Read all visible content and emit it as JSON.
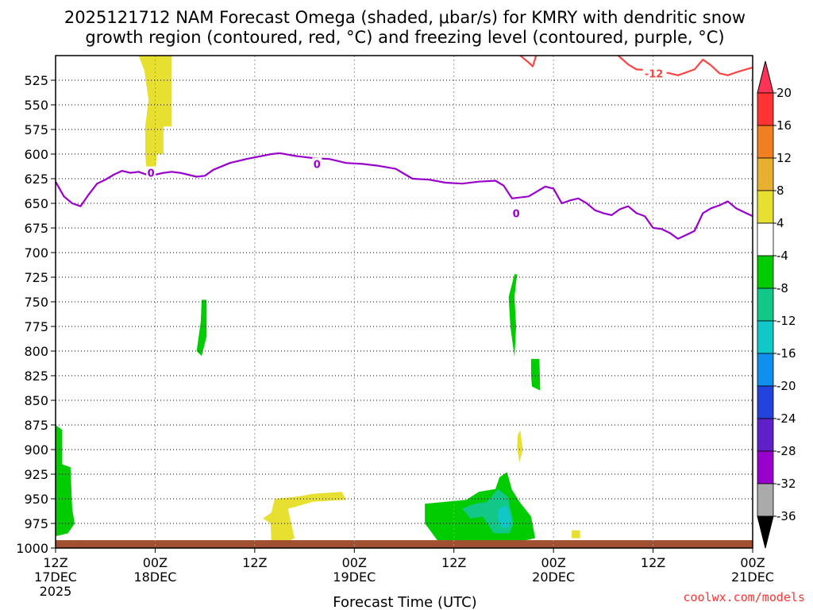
{
  "chart_data": {
    "type": "heatmap",
    "title_line1": "2025121712 NAM Forecast Omega (shaded, μbar/s) for KMRY with dendritic snow",
    "title_line2": "growth region (contoured, red, °C) and freezing level (contoured, purple, °C)",
    "xlabel": "Forecast Time (UTC)",
    "credit": "coolwx.com/models",
    "x_range_hours": [
      0,
      84
    ],
    "y_range_mb": [
      500,
      1000
    ],
    "x_ticks": [
      {
        "hour": 0,
        "line1": "12Z",
        "line2": "17DEC",
        "line3": "2025"
      },
      {
        "hour": 12,
        "line1": "00Z",
        "line2": "18DEC",
        "line3": ""
      },
      {
        "hour": 24,
        "line1": "12Z",
        "line2": "",
        "line3": ""
      },
      {
        "hour": 36,
        "line1": "00Z",
        "line2": "19DEC",
        "line3": ""
      },
      {
        "hour": 48,
        "line1": "12Z",
        "line2": "",
        "line3": ""
      },
      {
        "hour": 60,
        "line1": "00Z",
        "line2": "20DEC",
        "line3": ""
      },
      {
        "hour": 72,
        "line1": "12Z",
        "line2": "",
        "line3": ""
      },
      {
        "hour": 84,
        "line1": "00Z",
        "line2": "21DEC",
        "line3": ""
      }
    ],
    "y_ticks": [
      525,
      550,
      575,
      600,
      625,
      650,
      675,
      700,
      725,
      750,
      775,
      800,
      825,
      850,
      875,
      900,
      925,
      950,
      975,
      1000
    ],
    "colorbar": {
      "ticks": [
        20,
        16,
        12,
        8,
        4,
        -4,
        -8,
        -12,
        -16,
        -20,
        -24,
        -28,
        -32,
        -36
      ],
      "colors": [
        "#ff3355",
        "#ff3333",
        "#f07f1f",
        "#e8b030",
        "#e8e030",
        "#ffffff",
        "#00cc00",
        "#11c888",
        "#10c8c8",
        "#1090ee",
        "#2244dd",
        "#6020c8",
        "#9900cc",
        "#aaaaaa"
      ]
    },
    "contours": [
      {
        "name": "freezing-level",
        "label": "0",
        "color": "#9900cc",
        "points": [
          [
            0,
            628
          ],
          [
            1,
            643
          ],
          [
            2,
            650
          ],
          [
            3,
            653
          ],
          [
            4,
            641
          ],
          [
            5,
            630
          ],
          [
            6,
            626
          ],
          [
            7,
            621
          ],
          [
            8,
            617
          ],
          [
            9,
            619
          ],
          [
            10,
            618
          ],
          [
            11,
            621
          ],
          [
            12,
            621
          ],
          [
            13,
            619
          ],
          [
            14,
            618
          ],
          [
            15,
            619
          ],
          [
            16,
            621
          ],
          [
            17,
            623
          ],
          [
            18,
            622
          ],
          [
            19,
            616
          ],
          [
            21,
            609
          ],
          [
            23,
            605
          ],
          [
            26,
            600
          ],
          [
            27,
            599
          ],
          [
            29,
            602
          ],
          [
            31,
            604
          ],
          [
            33,
            605
          ],
          [
            35,
            609
          ],
          [
            37,
            610
          ],
          [
            39,
            612
          ],
          [
            41,
            615
          ],
          [
            43,
            625
          ],
          [
            45,
            626
          ],
          [
            47,
            629
          ],
          [
            49,
            630
          ],
          [
            51,
            628
          ],
          [
            53,
            627
          ],
          [
            54,
            632
          ],
          [
            55,
            645
          ],
          [
            57,
            643
          ],
          [
            59,
            633
          ],
          [
            60,
            635
          ],
          [
            61,
            650
          ],
          [
            62,
            647
          ],
          [
            63,
            645
          ],
          [
            64,
            650
          ],
          [
            65,
            657
          ],
          [
            66,
            660
          ],
          [
            67,
            662
          ],
          [
            68,
            656
          ],
          [
            69,
            653
          ],
          [
            70,
            660
          ],
          [
            71,
            663
          ],
          [
            72,
            675
          ],
          [
            73,
            676
          ],
          [
            74,
            680
          ],
          [
            75,
            686
          ],
          [
            76,
            682
          ],
          [
            77,
            678
          ],
          [
            78,
            660
          ],
          [
            79,
            655
          ],
          [
            80,
            652
          ],
          [
            81,
            648
          ],
          [
            82,
            655
          ],
          [
            83,
            659
          ],
          [
            84,
            663
          ]
        ]
      },
      {
        "name": "dendritic-minus12",
        "label": "-12",
        "color": "#ff4444",
        "points": [
          [
            67.8,
            500
          ],
          [
            69,
            509
          ],
          [
            70,
            514
          ],
          [
            72,
            515
          ],
          [
            74,
            518
          ],
          [
            75,
            520
          ],
          [
            77,
            514
          ],
          [
            78,
            504
          ],
          [
            79,
            510
          ],
          [
            80,
            518
          ],
          [
            81,
            520
          ],
          [
            82,
            517
          ],
          [
            84,
            512
          ]
        ]
      },
      {
        "name": "dendritic-minus12-small",
        "label": "",
        "color": "#ff4444",
        "points": [
          [
            56,
            500
          ],
          [
            57,
            507
          ],
          [
            57.5,
            511
          ],
          [
            57.8,
            503
          ],
          [
            57.9,
            500
          ]
        ]
      }
    ],
    "omega_regions": [
      {
        "value": 5,
        "color": "#e8e030",
        "points": [
          [
            10,
            500
          ],
          [
            14,
            500
          ],
          [
            14,
            572
          ],
          [
            13,
            572
          ],
          [
            13,
            600
          ],
          [
            12.2,
            600
          ],
          [
            12,
            622
          ],
          [
            11,
            620
          ],
          [
            10.8,
            600
          ],
          [
            10.8,
            572
          ],
          [
            11.2,
            545
          ],
          [
            10.7,
            515
          ]
        ]
      },
      {
        "value": -5,
        "color": "#00cc00",
        "points": [
          [
            17.6,
            748
          ],
          [
            18.2,
            748
          ],
          [
            18.2,
            785
          ],
          [
            17.6,
            805
          ],
          [
            17,
            800
          ],
          [
            17.5,
            770
          ]
        ]
      },
      {
        "value": -5,
        "color": "#00cc00",
        "points": [
          [
            55.3,
            722
          ],
          [
            55.6,
            722
          ],
          [
            55.3,
            745
          ],
          [
            55.5,
            775
          ],
          [
            55.3,
            806
          ],
          [
            54.8,
            775
          ],
          [
            54.6,
            745
          ]
        ]
      },
      {
        "value": -5,
        "color": "#00cc00",
        "points": [
          [
            57.3,
            808
          ],
          [
            58.3,
            808
          ],
          [
            58.4,
            840
          ],
          [
            57.4,
            836
          ],
          [
            57.3,
            825
          ]
        ]
      },
      {
        "value": 5,
        "color": "#e8e030",
        "points": [
          [
            56,
            880
          ],
          [
            56.3,
            900
          ],
          [
            55.9,
            913
          ],
          [
            55.6,
            898
          ],
          [
            55.7,
            885
          ]
        ]
      },
      {
        "value": 5,
        "color": "#e8e030",
        "points": [
          [
            62.2,
            982
          ],
          [
            63.2,
            982
          ],
          [
            63.2,
            990
          ],
          [
            62.2,
            990
          ]
        ]
      },
      {
        "value": 5,
        "color": "#e8e030",
        "points": [
          [
            3,
            992
          ],
          [
            4.5,
            993
          ],
          [
            4,
            997
          ],
          [
            3,
            997
          ]
        ]
      },
      {
        "value": 5,
        "color": "#e8e030",
        "points": [
          [
            26.4,
            950
          ],
          [
            29,
            948
          ],
          [
            31,
            945
          ],
          [
            34.5,
            943
          ],
          [
            35,
            951
          ],
          [
            31,
            953
          ],
          [
            29,
            958
          ],
          [
            28,
            960
          ],
          [
            28.8,
            990
          ],
          [
            27,
            997
          ],
          [
            26,
            992
          ],
          [
            25.9,
            975
          ],
          [
            25,
            970
          ],
          [
            26,
            964
          ]
        ]
      },
      {
        "value": -5,
        "color": "#00cc00",
        "points": [
          [
            0,
            875
          ],
          [
            0.8,
            880
          ],
          [
            0.8,
            915
          ],
          [
            1.8,
            918
          ],
          [
            2,
            960
          ],
          [
            2.3,
            975
          ],
          [
            1.5,
            985
          ],
          [
            0,
            988
          ]
        ]
      },
      {
        "value": -5,
        "color": "#00cc00",
        "points": [
          [
            44.5,
            955
          ],
          [
            47,
            953
          ],
          [
            49.5,
            951
          ],
          [
            51,
            943
          ],
          [
            53,
            940
          ],
          [
            53.5,
            928
          ],
          [
            54.4,
            923
          ],
          [
            55,
            941
          ],
          [
            56,
            954
          ],
          [
            57.3,
            968
          ],
          [
            57.8,
            990
          ],
          [
            55,
            995
          ],
          [
            50,
            993
          ],
          [
            46,
            992
          ],
          [
            44.5,
            975
          ]
        ]
      },
      {
        "value": -9,
        "color": "#11c888",
        "points": [
          [
            49,
            960
          ],
          [
            50.5,
            955
          ],
          [
            52,
            953
          ],
          [
            53.3,
            940
          ],
          [
            54.5,
            948
          ],
          [
            54.8,
            960
          ],
          [
            55.2,
            975
          ],
          [
            54.7,
            985
          ],
          [
            52.8,
            985
          ],
          [
            51.5,
            968
          ],
          [
            50,
            970
          ]
        ]
      },
      {
        "value": -14,
        "color": "#10c8c8",
        "points": [
          [
            53.4,
            960
          ],
          [
            54.4,
            957
          ],
          [
            54.9,
            970
          ],
          [
            54.5,
            980
          ],
          [
            53.6,
            978
          ],
          [
            53.3,
            968
          ]
        ]
      }
    ],
    "terrain": {
      "color": "#a05030",
      "top_mb": 992,
      "bottom_mb": 1000
    }
  }
}
